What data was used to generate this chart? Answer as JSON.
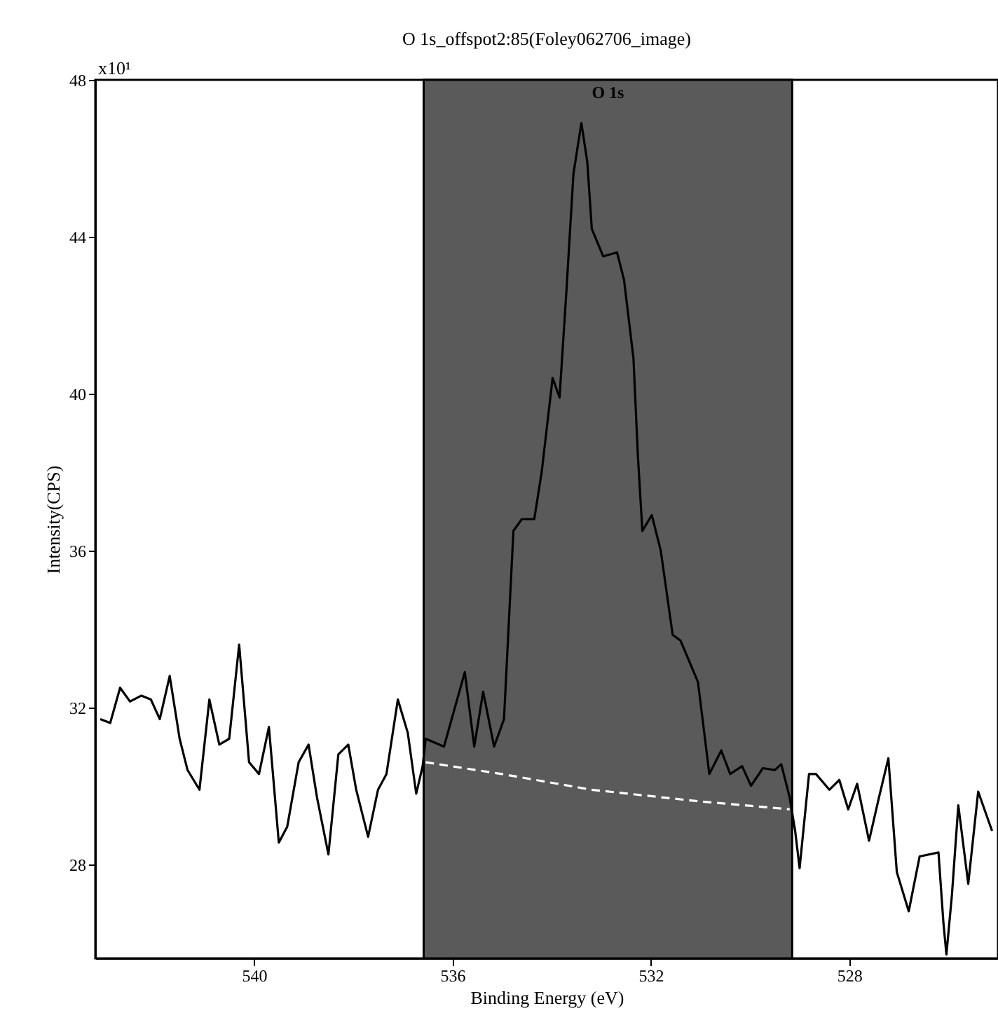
{
  "chart_data": {
    "type": "line",
    "title": "O 1s_offspot2:85(Foley062706_image)",
    "xlabel": "Binding Energy (eV)",
    "ylabel": "Intensity(CPS)",
    "annotations": [
      "x10¹"
    ],
    "xlim": [
      543.2,
      525
    ],
    "xticks": [
      540,
      536,
      532,
      528
    ],
    "ylim": [
      25.6,
      48
    ],
    "yticks": [
      28,
      32,
      36,
      40,
      44,
      48
    ],
    "grid": false,
    "bands": [
      {
        "axis": "x",
        "from": 536.58,
        "to": 529.15,
        "label": "O 1s",
        "color": "#5a5a5a"
      }
    ],
    "series": [
      {
        "type": "line",
        "color": "#000000",
        "line_style": "solid",
        "x": [
          543.1,
          542.9,
          542.7,
          542.5,
          542.27,
          542.08,
          541.9,
          541.7,
          541.5,
          541.34,
          541.1,
          540.9,
          540.7,
          540.5,
          540.3,
          540.1,
          539.9,
          539.7,
          539.5,
          539.33,
          539.1,
          538.9,
          538.73,
          538.5,
          538.3,
          538.1,
          537.94,
          537.7,
          537.5,
          537.33,
          537.1,
          536.9,
          536.73,
          536.6,
          536.54,
          536.17,
          535.75,
          535.56,
          535.38,
          535.16,
          534.96,
          534.77,
          534.6,
          534.35,
          534.2,
          533.98,
          533.84,
          533.7,
          533.56,
          533.4,
          533.28,
          533.19,
          532.96,
          532.68,
          532.54,
          532.35,
          532.26,
          532.17,
          531.98,
          531.8,
          531.56,
          531.4,
          531.05,
          530.82,
          530.58,
          530.4,
          530.16,
          529.98,
          529.74,
          529.5,
          529.37,
          529.2,
          529.09,
          529.0,
          528.81,
          528.67,
          528.4,
          528.2,
          528.02,
          527.84,
          527.6,
          527.4,
          527.21,
          527.04,
          526.8,
          526.58,
          526.2,
          526.1,
          526.04,
          525.93,
          525.8,
          525.6,
          525.4,
          525.12
        ],
        "values": [
          31.7,
          31.6,
          32.5,
          32.15,
          32.3,
          32.2,
          31.7,
          32.8,
          31.2,
          30.4,
          29.9,
          32.2,
          31.05,
          31.2,
          33.6,
          30.6,
          30.3,
          31.5,
          28.55,
          28.96,
          30.6,
          31.05,
          29.7,
          28.25,
          30.8,
          31.05,
          29.9,
          28.7,
          29.9,
          30.3,
          32.2,
          31.35,
          29.8,
          30.5,
          31.2,
          31.0,
          32.9,
          31.0,
          32.4,
          31.0,
          31.7,
          36.5,
          36.8,
          36.8,
          38.0,
          40.4,
          39.9,
          42.65,
          45.6,
          46.9,
          45.9,
          44.2,
          43.5,
          43.6,
          42.9,
          40.9,
          38.4,
          36.5,
          36.9,
          36.0,
          33.85,
          33.7,
          32.65,
          30.3,
          30.9,
          30.3,
          30.5,
          30.0,
          30.45,
          30.4,
          30.55,
          29.7,
          28.85,
          27.9,
          30.3,
          30.3,
          29.9,
          30.15,
          29.4,
          30.05,
          28.6,
          29.7,
          30.7,
          27.8,
          26.8,
          28.2,
          28.3,
          26.5,
          25.7,
          27.2,
          29.5,
          27.5,
          29.85,
          28.85
        ]
      },
      {
        "type": "line",
        "color": "#ffffff",
        "line_style": "dashed",
        "x": [
          536.54,
          535,
          533.2,
          531,
          529.2
        ],
        "values": [
          30.6,
          30.3,
          29.9,
          29.6,
          29.4
        ]
      }
    ]
  }
}
